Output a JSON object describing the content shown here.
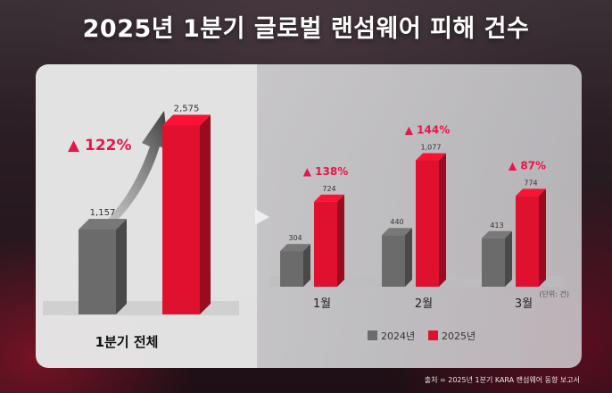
{
  "title": "2025년 1분기 글로벌 랜섬웨어 피해 건수",
  "unit_note": "(단위: 건)",
  "source": "출처 = 2025년 1분기 KARA 랜섬웨어 동향 보고서",
  "legend": [
    "2024년",
    "2025년"
  ],
  "colors": {
    "y2024": "#6b6b6b",
    "y2025": "#e0102f",
    "growth": "#e8164a"
  },
  "chart_data": [
    {
      "type": "bar",
      "categories": [
        "1분기 전체"
      ],
      "series": [
        {
          "name": "2024년",
          "values": [
            1157
          ]
        },
        {
          "name": "2025년",
          "values": [
            2575
          ]
        }
      ],
      "growth_labels": [
        "▲ 122%"
      ],
      "xlabel": "",
      "ylabel": "",
      "ylim": [
        0,
        2800
      ],
      "grid": false
    },
    {
      "type": "bar",
      "categories": [
        "1월",
        "2월",
        "3월"
      ],
      "series": [
        {
          "name": "2024년",
          "values": [
            304,
            440,
            413
          ]
        },
        {
          "name": "2025년",
          "values": [
            724,
            1077,
            774
          ]
        }
      ],
      "growth_labels": [
        "▲ 138%",
        "▲ 144%",
        "▲ 87%"
      ],
      "xlabel": "",
      "ylabel": "",
      "ylim": [
        0,
        1180
      ],
      "grid": false,
      "legend_position": "bottom"
    }
  ]
}
